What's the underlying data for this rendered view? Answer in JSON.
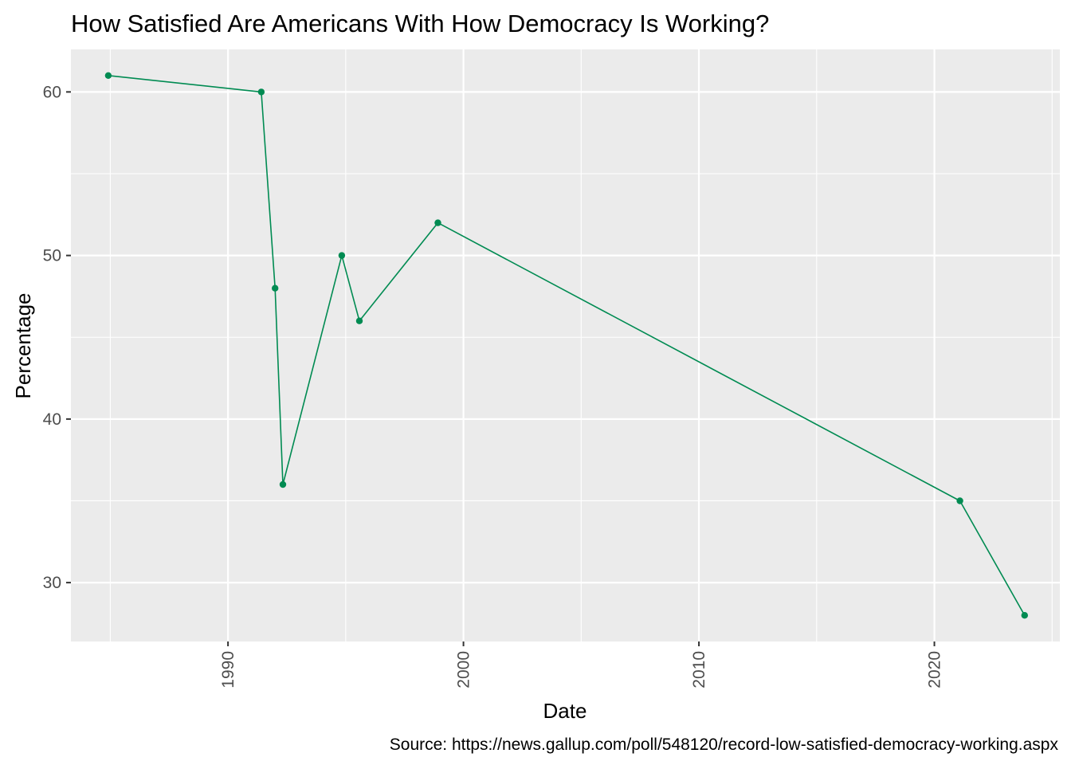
{
  "chart_data": {
    "type": "line",
    "title": "How Satisfied Are Americans With How Democracy Is Working?",
    "xlabel": "Date",
    "ylabel": "Percentage",
    "caption": "Source: https://news.gallup.com/poll/548120/record-low-satisfied-democracy-working.aspx",
    "x_axis_type": "date",
    "x_ticks": [
      "1990",
      "2000",
      "2010",
      "2020"
    ],
    "y_ticks": [
      "30",
      "40",
      "50",
      "60"
    ],
    "xlim": [
      "1983-05-01",
      "2025-05-01"
    ],
    "ylim": [
      26.4,
      62.6
    ],
    "grid": true,
    "legend": "none",
    "series": [
      {
        "color": "#008b52",
        "x": [
          "1984-12-01",
          "1991-06-01",
          "1992-01-01",
          "1992-05-01",
          "1994-11-01",
          "1995-08-01",
          "1998-12-01",
          "2021-02-01",
          "2023-11-01"
        ],
        "y": [
          61,
          60,
          48,
          36,
          50,
          46,
          52,
          35,
          28
        ]
      }
    ]
  },
  "colors": {
    "panel_background": "#ebebeb",
    "grid_line": "#ffffff",
    "series_line": "#008b52"
  }
}
